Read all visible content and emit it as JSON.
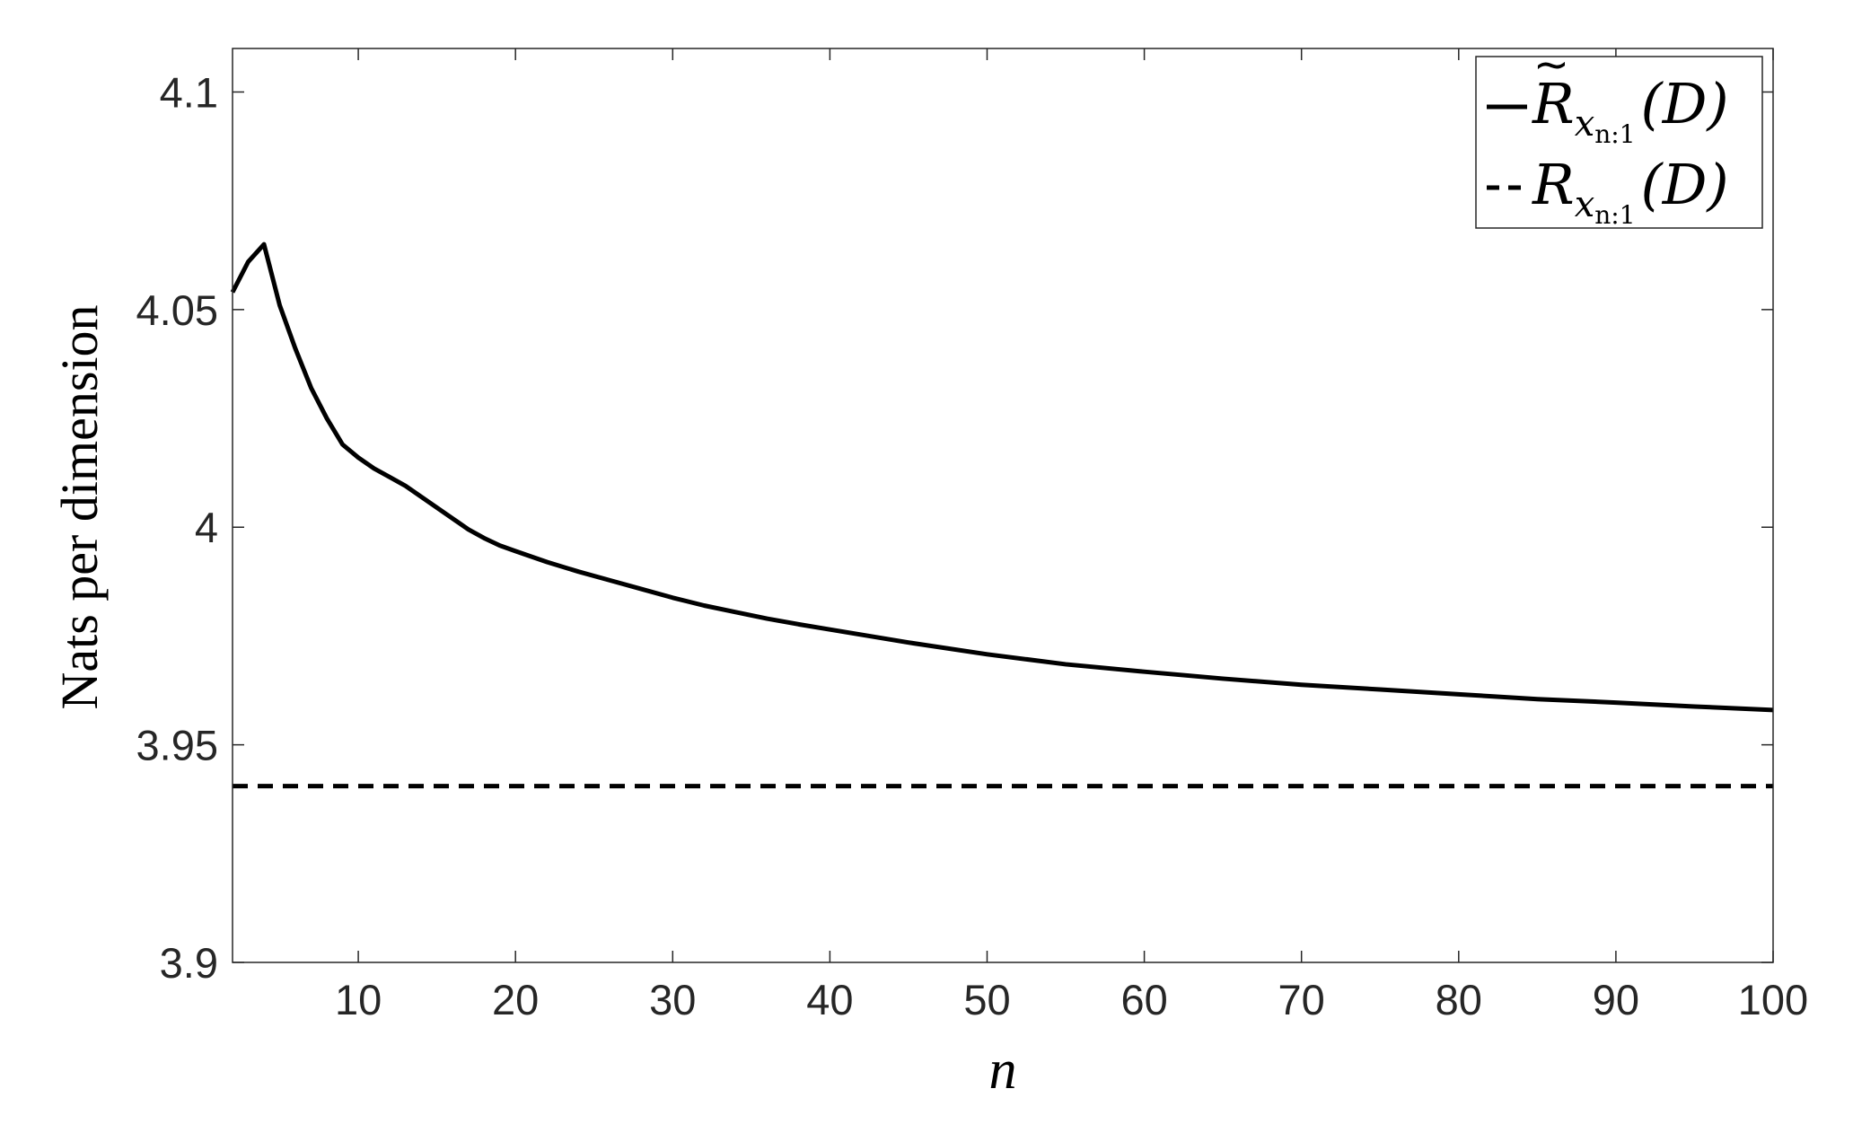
{
  "chart_data": {
    "type": "line",
    "title": "",
    "xlabel": "n",
    "ylabel": "Nats per dimension",
    "xlim": [
      2,
      100
    ],
    "ylim": [
      3.9,
      4.11
    ],
    "xticks": [
      10,
      20,
      30,
      40,
      50,
      60,
      70,
      80,
      90,
      100
    ],
    "xtick_labels": [
      "10",
      "20",
      "30",
      "40",
      "50",
      "60",
      "70",
      "80",
      "90",
      "100"
    ],
    "yticks": [
      3.9,
      3.95,
      4.0,
      4.05,
      4.1
    ],
    "ytick_labels": [
      "3.9",
      "3.95",
      "4",
      "4.05",
      "4.1"
    ],
    "grid": false,
    "legend_position": "top-right",
    "legend": [
      {
        "style": "solid",
        "base": "R",
        "accent": "~",
        "sub": "x",
        "subsub": "n:1",
        "arg": "(D)"
      },
      {
        "style": "dashed",
        "base": "R",
        "accent": "",
        "sub": "x",
        "subsub": "n:1",
        "arg": "(D)"
      }
    ],
    "series": [
      {
        "style": "solid",
        "color": "#000000",
        "x": [
          2,
          3,
          4,
          5,
          6,
          7,
          8,
          9,
          10,
          11,
          12,
          13,
          14,
          15,
          16,
          17,
          18,
          19,
          20,
          22,
          24,
          26,
          28,
          30,
          32,
          34,
          36,
          38,
          40,
          45,
          50,
          55,
          60,
          65,
          70,
          75,
          80,
          85,
          90,
          95,
          100
        ],
        "y": [
          4.054,
          4.061,
          4.065,
          4.051,
          4.041,
          4.032,
          4.025,
          4.019,
          4.016,
          4.0135,
          4.0115,
          4.0095,
          4.007,
          4.0045,
          4.002,
          3.9995,
          3.9975,
          3.9958,
          3.9945,
          3.992,
          3.9898,
          3.9878,
          3.9858,
          3.9838,
          3.982,
          3.9805,
          3.979,
          3.9777,
          3.9765,
          3.9735,
          3.9708,
          3.9685,
          3.9668,
          3.9652,
          3.9638,
          3.9627,
          3.9616,
          3.9605,
          3.9597,
          3.9588,
          3.958
        ]
      },
      {
        "style": "dashed",
        "color": "#000000",
        "x": [
          2,
          100
        ],
        "y": [
          3.9405,
          3.9405
        ]
      }
    ]
  }
}
